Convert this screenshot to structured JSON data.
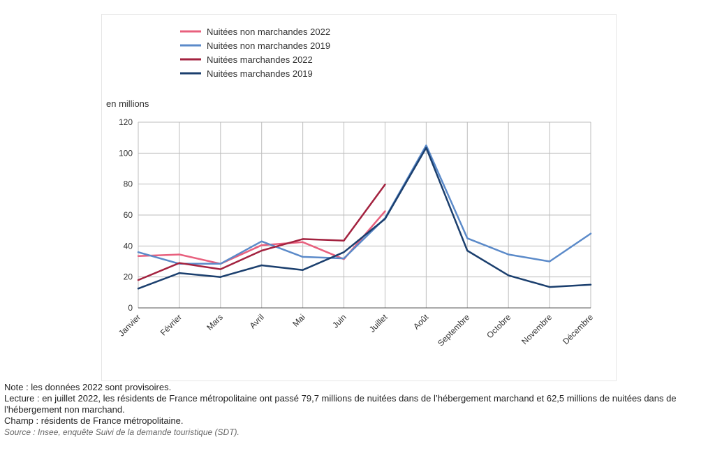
{
  "chart_data": {
    "type": "line",
    "ylabel": "en millions",
    "ylim": [
      0,
      120
    ],
    "yticks": [
      0,
      20,
      40,
      60,
      80,
      100,
      120
    ],
    "categories": [
      "Janvier",
      "Février",
      "Mars",
      "Avril",
      "Mai",
      "Juin",
      "Juillet",
      "Août",
      "Septembre",
      "Octobre",
      "Novembre",
      "Décembre"
    ],
    "legend_position": "top",
    "grid": true,
    "series": [
      {
        "name": "Nuitées non marchandes 2022",
        "color": "#e8607e",
        "values": [
          33.5,
          34.5,
          28.5,
          40.5,
          42.5,
          31.5,
          62.5,
          null,
          null,
          null,
          null,
          null
        ]
      },
      {
        "name": "Nuitées non marchandes 2019",
        "color": "#5b8ac9",
        "values": [
          36,
          28.5,
          28.5,
          43,
          33,
          32,
          58,
          105,
          45,
          34.5,
          30,
          48
        ]
      },
      {
        "name": "Nuitées marchandes 2022",
        "color": "#a3223f",
        "values": [
          18,
          29,
          25,
          37,
          44.5,
          43.5,
          79.7,
          null,
          null,
          null,
          null,
          null
        ]
      },
      {
        "name": "Nuitées marchandes 2019",
        "color": "#1b3f6e",
        "values": [
          12.5,
          22.5,
          20,
          27.5,
          24.5,
          36,
          57.5,
          103.5,
          37,
          21,
          13.5,
          15
        ]
      }
    ]
  },
  "notes": {
    "note": "Note : les données 2022 sont provisoires.",
    "lecture": "Lecture : en juillet 2022, les résidents de France métropolitaine ont passé 79,7 millions de nuitées dans de l’hébergement marchand et 62,5 millions de nuitées dans de l’hébergement non marchand.",
    "champ": "Champ : résidents de France métropolitaine.",
    "source": "Source : Insee, enquête Suivi de la demande touristique (SDT)."
  }
}
